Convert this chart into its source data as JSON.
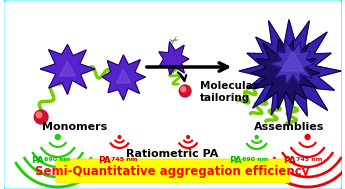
{
  "bg_color": "#ffffff",
  "border_color": "#00e8ff",
  "title_text": "Semi-Quantitative aggregation efficiency",
  "title_bg": "#ffff00",
  "title_color": "#ff0000",
  "title_fontsize": 8.5,
  "ratiometric_text": "Ratiometric PA",
  "monomers_label": "Monomers",
  "assemblies_label": "Assemblies",
  "molecular_tailoring": "Molecular\ntailoring",
  "green_color": "#22cc00",
  "red_color": "#ee0000",
  "purple_color": "#5522cc",
  "purple_dark": "#1a0055",
  "purple_light": "#7755dd",
  "pink_color": "#cc1133",
  "stem_color": "#77cc00",
  "pa690_green": "#00bb00",
  "pa745_red": "#cc0000",
  "sub_690": "690 nm",
  "sub_745": "745 nm",
  "scissors_color": "#336600"
}
